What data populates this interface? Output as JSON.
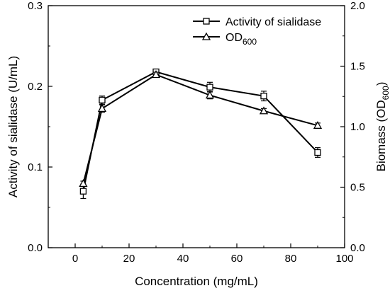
{
  "chart_data": {
    "type": "line",
    "xlabel": "Concentration (mg/mL)",
    "ylabel_left": "Activity of sialidase (U/mL)",
    "ylabel_right": {
      "text": "Biomass (OD",
      "sub": "600",
      "suffix": ")"
    },
    "xlim": [
      -10,
      100
    ],
    "ylim_left": [
      0.0,
      0.3
    ],
    "ylim_right": [
      0.0,
      2.0
    ],
    "x_ticks": [
      0,
      20,
      40,
      60,
      80,
      100
    ],
    "x_tick_labels": [
      "0",
      "20",
      "40",
      "60",
      "80",
      "100"
    ],
    "y_left_ticks": [
      0.0,
      0.1,
      0.2,
      0.3
    ],
    "y_left_tick_labels": [
      "0.0",
      "0.1",
      "0.2",
      "0.3"
    ],
    "y_right_ticks": [
      0.0,
      0.5,
      1.0,
      1.5,
      2.0
    ],
    "y_right_tick_labels": [
      "0.0",
      "0.5",
      "1.0",
      "1.5",
      "2.0"
    ],
    "grid": false,
    "legend_position": "top-right",
    "series": [
      {
        "name": "Activity of sialidase",
        "name_sub": "",
        "marker": "square",
        "axis": "left",
        "x": [
          3,
          10,
          30,
          50,
          70,
          90
        ],
        "y": [
          0.07,
          0.183,
          0.218,
          0.199,
          0.188,
          0.118
        ],
        "err": [
          0.009,
          0.005,
          0.003,
          0.006,
          0.006,
          0.006
        ]
      },
      {
        "name": "OD",
        "name_sub": "600",
        "marker": "triangle",
        "axis": "right",
        "x": [
          3,
          10,
          30,
          50,
          70,
          90
        ],
        "y": [
          0.53,
          1.15,
          1.43,
          1.26,
          1.13,
          1.01
        ],
        "err": [
          0.02,
          0.03,
          0.02,
          0.03,
          0.02,
          0.02
        ]
      }
    ]
  }
}
